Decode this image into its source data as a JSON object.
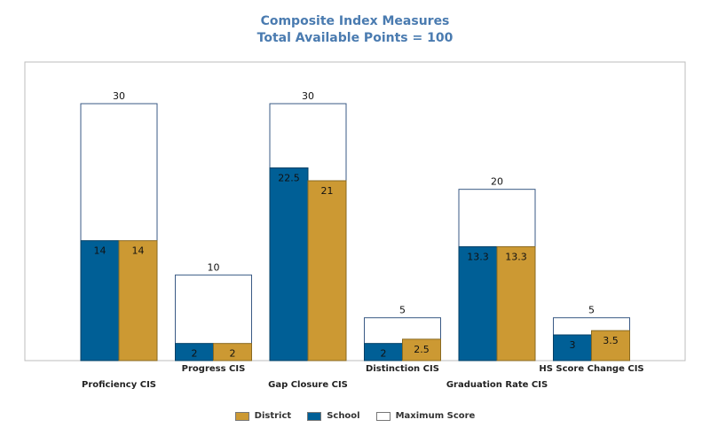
{
  "chart_data": {
    "type": "bar",
    "title": "Composite Index Measures",
    "subtitle": "Total Available Points = 100",
    "categories": [
      "Proficiency CIS",
      "Progress CIS",
      "Gap Closure CIS",
      "Distinction CIS",
      "Graduation Rate CIS",
      "HS Score Change CIS"
    ],
    "series": [
      {
        "name": "Maximum Score",
        "values": [
          30,
          10,
          30,
          5,
          20,
          5
        ],
        "color": "#ffffff"
      },
      {
        "name": "School",
        "values": [
          14,
          2,
          22.5,
          2,
          13.3,
          3
        ],
        "color": "#005f96"
      },
      {
        "name": "District",
        "values": [
          14,
          2,
          21,
          2.5,
          13.3,
          3.5
        ],
        "color": "#cc9933"
      }
    ],
    "value_labels": {
      "max": [
        "30",
        "10",
        "30",
        "5",
        "20",
        "5"
      ],
      "school": [
        "14",
        "2",
        "22.5",
        "2",
        "13.3",
        "3"
      ],
      "district": [
        "14",
        "2",
        "21",
        "2.5",
        "13.3",
        "3.5"
      ]
    },
    "ylim": [
      0,
      30
    ],
    "grid": false,
    "legend_position": "bottom",
    "legend_order": [
      "District",
      "School",
      "Maximum Score"
    ]
  }
}
